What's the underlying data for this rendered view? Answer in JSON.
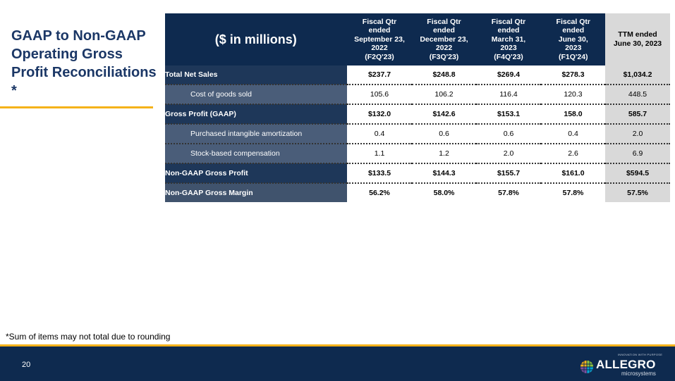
{
  "slide": {
    "title": "GAAP to Non-GAAP Operating Gross Profit Reconciliations *",
    "footnote": "*Sum of items may not total due to rounding",
    "page_number": "20"
  },
  "table": {
    "units_header": "($ in millions)",
    "columns": [
      {
        "line1": "Fiscal Qtr",
        "line2": "ended",
        "line3": "September 23,",
        "line4": "2022",
        "line5": "(F2Q'23)"
      },
      {
        "line1": "Fiscal Qtr",
        "line2": "ended",
        "line3": "December 23,",
        "line4": "2022",
        "line5": "(F3Q'23)"
      },
      {
        "line1": "Fiscal Qtr",
        "line2": "ended",
        "line3": "March 31,",
        "line4": "2023",
        "line5": "(F4Q'23)"
      },
      {
        "line1": "Fiscal Qtr",
        "line2": "ended",
        "line3": "June 30,",
        "line4": "2023",
        "line5": "(F1Q'24)"
      }
    ],
    "ttm_header": {
      "line1": "TTM ended",
      "line2": "June 30, 2023"
    },
    "rows": [
      {
        "label": "Total Net Sales",
        "values": [
          "$237.7",
          "$248.8",
          "$269.4",
          "$278.3"
        ],
        "ttm": "$1,034.2"
      },
      {
        "label": "Cost of goods sold",
        "values": [
          "105.6",
          "106.2",
          "116.4",
          "120.3"
        ],
        "ttm": "448.5"
      },
      {
        "label": "Gross Profit (GAAP)",
        "values": [
          "$132.0",
          "$142.6",
          "$153.1",
          "158.0"
        ],
        "ttm": "585.7"
      },
      {
        "label": "Purchased intangible amortization",
        "values": [
          "0.4",
          "0.6",
          "0.6",
          "0.4"
        ],
        "ttm": "2.0"
      },
      {
        "label": "Stock-based compensation",
        "values": [
          "1.1",
          "1.2",
          "2.0",
          "2.6"
        ],
        "ttm": "6.9"
      },
      {
        "label": "Non-GAAP Gross Profit",
        "values": [
          "$133.5",
          "$144.3",
          "$155.7",
          "$161.0"
        ],
        "ttm": "$594.5"
      },
      {
        "label": "Non-GAAP Gross Margin",
        "values": [
          "56.2%",
          "58.0%",
          "57.8%",
          "57.8%"
        ],
        "ttm": "57.5%"
      }
    ]
  },
  "logo": {
    "tagline": "INNOVATION WITH PURPOSE",
    "wordmark": "ALLEGRO",
    "subtext": "microsystems"
  },
  "colors": {
    "navy": "#0e2a4f",
    "accent_gold": "#f5b21a",
    "ttm_gray": "#d9d9d9"
  }
}
